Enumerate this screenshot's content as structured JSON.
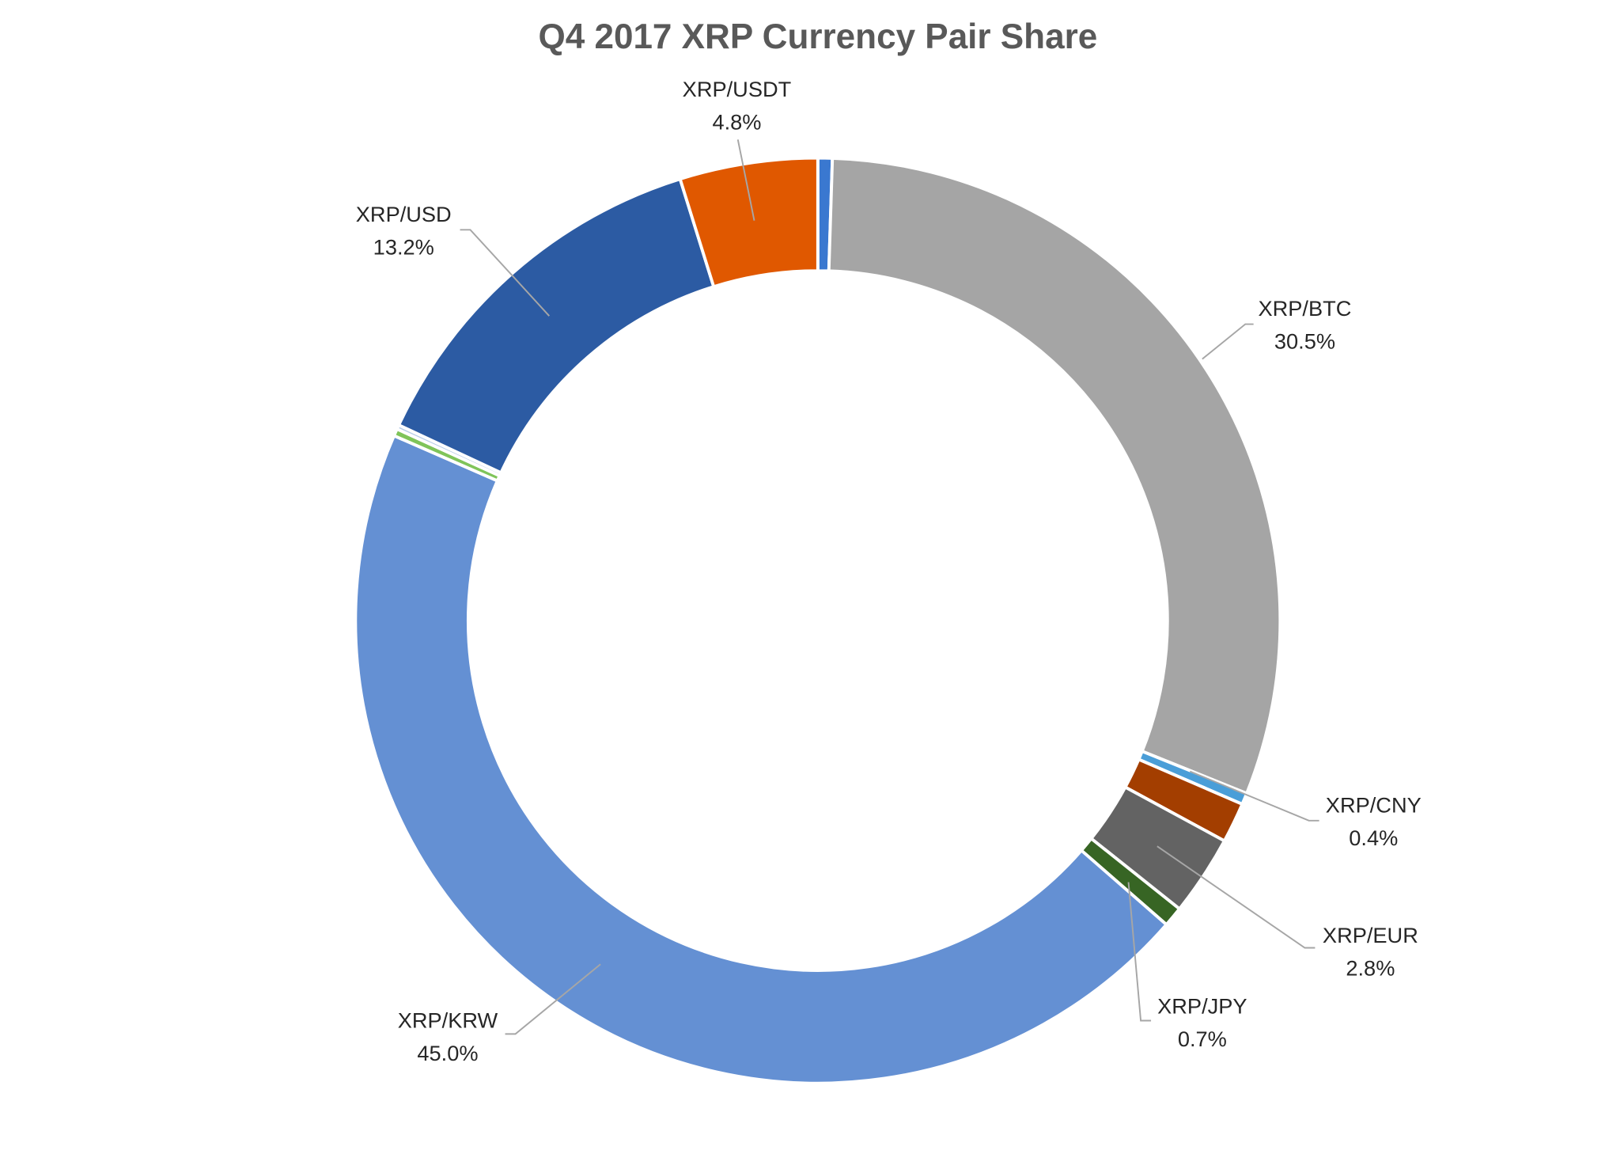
{
  "chart_data": {
    "type": "pie",
    "variant": "doughnut",
    "title": "Q4 2017 XRP Currency Pair Share",
    "legend": "none",
    "slices": [
      {
        "name": "",
        "value": 0.5,
        "label": "",
        "color": "#3a78d0"
      },
      {
        "name": "XRP/BTC",
        "value": 30.5,
        "label": "30.5%",
        "color": "#a5a5a5"
      },
      {
        "name": "XRP/CNY",
        "value": 0.4,
        "label": "0.4%",
        "color": "#4a9ed8"
      },
      {
        "name": "",
        "value": 1.4,
        "label": "",
        "color": "#a33e00"
      },
      {
        "name": "XRP/EUR",
        "value": 2.8,
        "label": "2.8%",
        "color": "#636363"
      },
      {
        "name": "XRP/JPY",
        "value": 0.7,
        "label": "0.7%",
        "color": "#376524"
      },
      {
        "name": "XRP/KRW",
        "value": 45.0,
        "label": "45.0%",
        "color": "#6490d3"
      },
      {
        "name": "",
        "value": 0.25,
        "label": "",
        "color": "#7fc45a"
      },
      {
        "name": "",
        "value": 0.15,
        "label": "",
        "color": "#b8cde8"
      },
      {
        "name": "XRP/USD",
        "value": 13.2,
        "label": "13.2%",
        "color": "#2c5ba3"
      },
      {
        "name": "XRP/USDT",
        "value": 4.8,
        "label": "4.8%",
        "color": "#e05800"
      }
    ]
  }
}
